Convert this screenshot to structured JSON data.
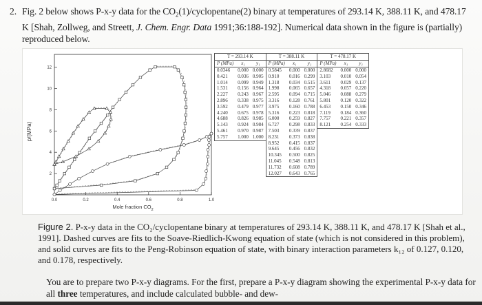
{
  "problem": {
    "number": "2.",
    "text_before_link": "Fig. 2 below shows P-x-y data for the CO",
    "text_mid": "(1)/cyclopentane(2) binary at temperatures of 293.14 K, 388.11 K, and 478.17 K [Shah, Zollweg, and Streett, ",
    "journal": "J. Chem. Engr. Data",
    "text_after": " 1991;36:188-192]. Numerical data shown in the figure is (partially) reproduced below."
  },
  "figure": {
    "ylabel": "p/(MPa)",
    "xlabel": "Mole fraction CO",
    "xlabel_sub": "2",
    "x_ticks": [
      "0.0",
      "0.2",
      "0.4",
      "0.6",
      "0.8",
      "1.0"
    ],
    "y_ticks": [
      "12",
      "10",
      "8",
      "6",
      "4",
      "2"
    ]
  },
  "table": {
    "blocks": [
      {
        "temperature": "T = 293.14 K",
        "headers": [
          "P (MPa)",
          "x₁",
          "y₁"
        ],
        "rows": [
          [
            "0.0346",
            "0.000",
            "0.000"
          ],
          [
            "0.421",
            "0.036",
            "0.905"
          ],
          [
            "1.014",
            "0.099",
            "0.949"
          ],
          [
            "1.531",
            "0.156",
            "0.964"
          ],
          [
            "2.227",
            "0.243",
            "0.967"
          ],
          [
            "2.896",
            "0.338",
            "0.975"
          ],
          [
            "3.592",
            "0.479",
            "0.977"
          ],
          [
            "4.240",
            "0.675",
            "0.978"
          ],
          [
            "4.688",
            "0.826",
            "0.985"
          ],
          [
            "5.143",
            "0.924",
            "0.984"
          ],
          [
            "5.461",
            "0.970",
            "0.987"
          ],
          [
            "5.757",
            "1.000",
            "1.000"
          ]
        ]
      },
      {
        "temperature": "T = 388.11 K",
        "headers": [
          "P (MPa)",
          "x₁",
          "y₁"
        ],
        "rows": [
          [
            "0.5845",
            "0.000",
            "0.000"
          ],
          [
            "0.910",
            "0.016",
            "0.299"
          ],
          [
            "1.318",
            "0.034",
            "0.515"
          ],
          [
            "1.998",
            "0.065",
            "0.657"
          ],
          [
            "2.595",
            "0.094",
            "0.715"
          ],
          [
            "3.316",
            "0.128",
            "0.761"
          ],
          [
            "3.975",
            "0.160",
            "0.788"
          ],
          [
            "5.316",
            "0.223",
            "0.818"
          ],
          [
            "6.000",
            "0.259",
            "0.827"
          ],
          [
            "6.727",
            "0.298",
            "0.833"
          ],
          [
            "7.503",
            "0.339",
            "0.837"
          ],
          [
            "8.231",
            "0.373",
            "0.838"
          ],
          [
            "8.952",
            "0.415",
            "0.837"
          ],
          [
            "9.645",
            "0.456",
            "0.832"
          ],
          [
            "10.345",
            "0.500",
            "0.825"
          ],
          [
            "11.045",
            "0.548",
            "0.813"
          ],
          [
            "11.732",
            "0.608",
            "0.789"
          ],
          [
            "12.027",
            "0.643",
            "0.765"
          ]
        ]
      },
      {
        "temperature": "T = 478.17 K",
        "headers": [
          "P (MPa)",
          "x₁",
          "y₁"
        ],
        "rows": [
          [
            "2.8682",
            "0.000",
            "0.000"
          ],
          [
            "3.103",
            "0.010",
            "0.054"
          ],
          [
            "3.611",
            "0.029",
            "0.137"
          ],
          [
            "4.318",
            "0.057",
            "0.220"
          ],
          [
            "5.046",
            "0.088",
            "0.279"
          ],
          [
            "5.801",
            "0.120",
            "0.322"
          ],
          [
            "6.453",
            "0.150",
            "0.346"
          ],
          [
            "7.119",
            "0.184",
            "0.360"
          ],
          [
            "7.757",
            "0.221",
            "0.357"
          ],
          [
            "8.121",
            "0.254",
            "0.333"
          ]
        ]
      }
    ]
  },
  "caption": {
    "label": "Figure 2.",
    "text": "P-x-y data in the CO₂/cyclopentane binary at temperatures of 293.14 K, 388.11 K, and 478.17 K [Shah et al., 1991]. Dashed curves are fits to the Soave-Riedlich-Kwong equation of state (which is not considered in this problem), and solid curves are fits to the Peng-Robinson equation of state, with binary interaction parameters k₁₂ of 0.127, 0.120, and 0.178, respectively."
  },
  "instructions": {
    "text": "You are to prepare two P-x-y diagrams. For the first, prepare a P-x-y diagram showing the experimental P-x-y data for all ",
    "bold": "three",
    "text_after": " temperatures, and include calculated bubble- and dew-"
  }
}
